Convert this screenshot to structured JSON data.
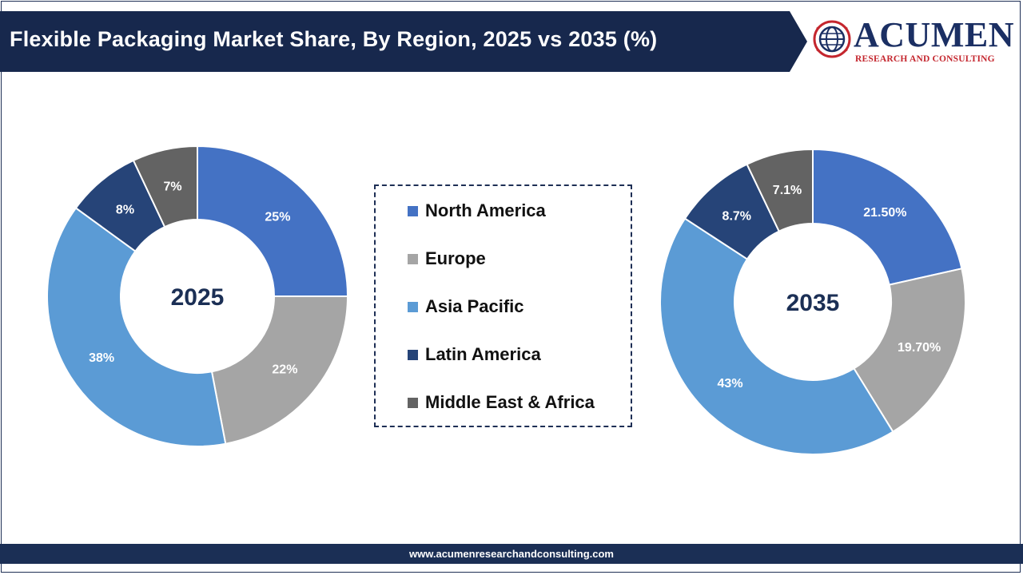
{
  "header": {
    "title": "Flexible Packaging Market Share, By Region, 2025 vs 2035 (%)",
    "title_bg_color": "#17284d"
  },
  "logo": {
    "name": "ACUMEN",
    "tagline": "RESEARCH AND CONSULTING",
    "emblem_icon": "globe-icon"
  },
  "legend": {
    "items": [
      {
        "label": "North America",
        "color": "#4472c4"
      },
      {
        "label": "Europe",
        "color": "#a5a5a5"
      },
      {
        "label": "Asia Pacific",
        "color": "#5b9bd5"
      },
      {
        "label": "Latin America",
        "color": "#264478"
      },
      {
        "label": "Middle East & Africa",
        "color": "#636363"
      }
    ]
  },
  "chart_data": [
    {
      "type": "pie",
      "center_label": "2025",
      "categories": [
        "North America",
        "Europe",
        "Asia Pacific",
        "Latin America",
        "Middle East & Africa"
      ],
      "values": [
        25,
        22,
        38,
        8,
        7
      ],
      "labels": [
        "25%",
        "22%",
        "38%",
        "8%",
        "7%"
      ]
    },
    {
      "type": "pie",
      "center_label": "2035",
      "categories": [
        "North America",
        "Europe",
        "Asia Pacific",
        "Latin America",
        "Middle East & Africa"
      ],
      "values": [
        21.5,
        19.7,
        43,
        8.7,
        7.1
      ],
      "labels": [
        "21.50%",
        "19.70%",
        "43%",
        "8.7%",
        "7.1%"
      ]
    }
  ],
  "footer": {
    "url": "www.acumenresearchandconsulting.com"
  }
}
